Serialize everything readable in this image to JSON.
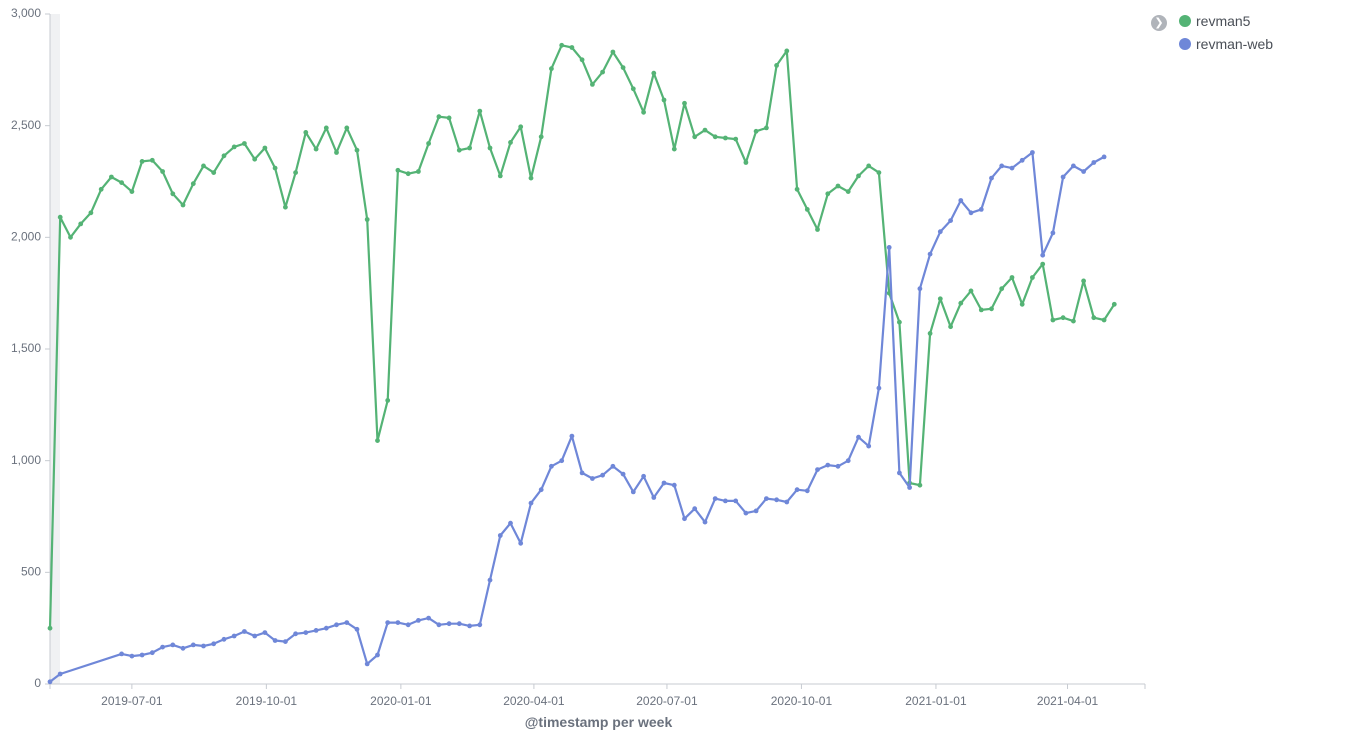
{
  "chart_data": {
    "type": "line",
    "xlabel": "@timestamp per week",
    "ylabel": "",
    "ylim": [
      0,
      3000
    ],
    "y_ticks": [
      0,
      500,
      1000,
      1500,
      2000,
      2500,
      3000
    ],
    "y_tick_labels": [
      "0",
      "500",
      "1,000",
      "1,500",
      "2,000",
      "2,500",
      "3,000"
    ],
    "x_range": [
      "2019-05-06",
      "2021-05-24"
    ],
    "x_ticks": [
      "2019-07-01",
      "2019-10-01",
      "2020-01-01",
      "2020-04-01",
      "2020-07-01",
      "2020-10-01",
      "2021-01-01",
      "2021-04-01"
    ],
    "legend_position": "top-right",
    "series": [
      {
        "name": "revman5",
        "color": "#54b375",
        "points": [
          [
            "2019-05-06",
            250
          ],
          [
            "2019-05-13",
            2090
          ],
          [
            "2019-05-20",
            2000
          ],
          [
            "2019-05-27",
            2060
          ],
          [
            "2019-06-03",
            2110
          ],
          [
            "2019-06-10",
            2215
          ],
          [
            "2019-06-17",
            2270
          ],
          [
            "2019-06-24",
            2245
          ],
          [
            "2019-07-01",
            2205
          ],
          [
            "2019-07-08",
            2340
          ],
          [
            "2019-07-15",
            2345
          ],
          [
            "2019-07-22",
            2295
          ],
          [
            "2019-07-29",
            2195
          ],
          [
            "2019-08-05",
            2145
          ],
          [
            "2019-08-12",
            2240
          ],
          [
            "2019-08-19",
            2320
          ],
          [
            "2019-08-26",
            2290
          ],
          [
            "2019-09-02",
            2365
          ],
          [
            "2019-09-09",
            2405
          ],
          [
            "2019-09-16",
            2420
          ],
          [
            "2019-09-23",
            2350
          ],
          [
            "2019-09-30",
            2400
          ],
          [
            "2019-10-07",
            2310
          ],
          [
            "2019-10-14",
            2135
          ],
          [
            "2019-10-21",
            2290
          ],
          [
            "2019-10-28",
            2470
          ],
          [
            "2019-11-04",
            2395
          ],
          [
            "2019-11-11",
            2490
          ],
          [
            "2019-11-18",
            2380
          ],
          [
            "2019-11-25",
            2490
          ],
          [
            "2019-12-02",
            2390
          ],
          [
            "2019-12-09",
            2080
          ],
          [
            "2019-12-16",
            1090
          ],
          [
            "2019-12-23",
            1270
          ],
          [
            "2019-12-30",
            2300
          ],
          [
            "2020-01-06",
            2285
          ],
          [
            "2020-01-13",
            2295
          ],
          [
            "2020-01-20",
            2420
          ],
          [
            "2020-01-27",
            2540
          ],
          [
            "2020-02-03",
            2535
          ],
          [
            "2020-02-10",
            2390
          ],
          [
            "2020-02-17",
            2400
          ],
          [
            "2020-02-24",
            2565
          ],
          [
            "2020-03-02",
            2400
          ],
          [
            "2020-03-09",
            2275
          ],
          [
            "2020-03-16",
            2425
          ],
          [
            "2020-03-23",
            2495
          ],
          [
            "2020-03-30",
            2265
          ],
          [
            "2020-04-06",
            2450
          ],
          [
            "2020-04-13",
            2755
          ],
          [
            "2020-04-20",
            2860
          ],
          [
            "2020-04-27",
            2850
          ],
          [
            "2020-05-04",
            2795
          ],
          [
            "2020-05-11",
            2685
          ],
          [
            "2020-05-18",
            2740
          ],
          [
            "2020-05-25",
            2830
          ],
          [
            "2020-06-01",
            2760
          ],
          [
            "2020-06-08",
            2665
          ],
          [
            "2020-06-15",
            2560
          ],
          [
            "2020-06-22",
            2735
          ],
          [
            "2020-06-29",
            2615
          ],
          [
            "2020-07-06",
            2395
          ],
          [
            "2020-07-13",
            2600
          ],
          [
            "2020-07-20",
            2450
          ],
          [
            "2020-07-27",
            2480
          ],
          [
            "2020-08-03",
            2450
          ],
          [
            "2020-08-10",
            2445
          ],
          [
            "2020-08-17",
            2440
          ],
          [
            "2020-08-24",
            2335
          ],
          [
            "2020-08-31",
            2475
          ],
          [
            "2020-09-07",
            2490
          ],
          [
            "2020-09-14",
            2770
          ],
          [
            "2020-09-21",
            2835
          ],
          [
            "2020-09-28",
            2215
          ],
          [
            "2020-10-05",
            2125
          ],
          [
            "2020-10-12",
            2035
          ],
          [
            "2020-10-19",
            2195
          ],
          [
            "2020-10-26",
            2230
          ],
          [
            "2020-11-02",
            2205
          ],
          [
            "2020-11-09",
            2275
          ],
          [
            "2020-11-16",
            2320
          ],
          [
            "2020-11-23",
            2290
          ],
          [
            "2020-11-30",
            1750
          ],
          [
            "2020-12-07",
            1620
          ],
          [
            "2020-12-14",
            900
          ],
          [
            "2020-12-21",
            890
          ],
          [
            "2020-12-28",
            1570
          ],
          [
            "2021-01-04",
            1725
          ],
          [
            "2021-01-11",
            1600
          ],
          [
            "2021-01-18",
            1705
          ],
          [
            "2021-01-25",
            1760
          ],
          [
            "2021-02-01",
            1675
          ],
          [
            "2021-02-08",
            1680
          ],
          [
            "2021-02-15",
            1770
          ],
          [
            "2021-02-22",
            1820
          ],
          [
            "2021-03-01",
            1700
          ],
          [
            "2021-03-08",
            1820
          ],
          [
            "2021-03-15",
            1880
          ],
          [
            "2021-03-22",
            1630
          ],
          [
            "2021-03-29",
            1640
          ],
          [
            "2021-04-05",
            1625
          ],
          [
            "2021-04-12",
            1805
          ],
          [
            "2021-04-19",
            1640
          ],
          [
            "2021-04-26",
            1630
          ],
          [
            "2021-05-03",
            1700
          ]
        ]
      },
      {
        "name": "revman-web",
        "color": "#6f87d8",
        "points": [
          [
            "2019-05-06",
            10
          ],
          [
            "2019-05-13",
            45
          ],
          [
            "2019-06-24",
            135
          ],
          [
            "2019-07-01",
            125
          ],
          [
            "2019-07-08",
            130
          ],
          [
            "2019-07-15",
            140
          ],
          [
            "2019-07-22",
            165
          ],
          [
            "2019-07-29",
            175
          ],
          [
            "2019-08-05",
            160
          ],
          [
            "2019-08-12",
            175
          ],
          [
            "2019-08-19",
            170
          ],
          [
            "2019-08-26",
            180
          ],
          [
            "2019-09-02",
            200
          ],
          [
            "2019-09-09",
            215
          ],
          [
            "2019-09-16",
            235
          ],
          [
            "2019-09-23",
            215
          ],
          [
            "2019-09-30",
            230
          ],
          [
            "2019-10-07",
            195
          ],
          [
            "2019-10-14",
            190
          ],
          [
            "2019-10-21",
            225
          ],
          [
            "2019-10-28",
            230
          ],
          [
            "2019-11-04",
            240
          ],
          [
            "2019-11-11",
            250
          ],
          [
            "2019-11-18",
            265
          ],
          [
            "2019-11-25",
            275
          ],
          [
            "2019-12-02",
            245
          ],
          [
            "2019-12-09",
            90
          ],
          [
            "2019-12-16",
            130
          ],
          [
            "2019-12-23",
            275
          ],
          [
            "2019-12-30",
            275
          ],
          [
            "2020-01-06",
            265
          ],
          [
            "2020-01-13",
            285
          ],
          [
            "2020-01-20",
            295
          ],
          [
            "2020-01-27",
            265
          ],
          [
            "2020-02-03",
            270
          ],
          [
            "2020-02-10",
            270
          ],
          [
            "2020-02-17",
            260
          ],
          [
            "2020-02-24",
            265
          ],
          [
            "2020-03-02",
            465
          ],
          [
            "2020-03-09",
            665
          ],
          [
            "2020-03-16",
            720
          ],
          [
            "2020-03-23",
            630
          ],
          [
            "2020-03-30",
            810
          ],
          [
            "2020-04-06",
            870
          ],
          [
            "2020-04-13",
            975
          ],
          [
            "2020-04-20",
            1000
          ],
          [
            "2020-04-27",
            1110
          ],
          [
            "2020-05-04",
            945
          ],
          [
            "2020-05-11",
            920
          ],
          [
            "2020-05-18",
            935
          ],
          [
            "2020-05-25",
            975
          ],
          [
            "2020-06-01",
            940
          ],
          [
            "2020-06-08",
            860
          ],
          [
            "2020-06-15",
            930
          ],
          [
            "2020-06-22",
            835
          ],
          [
            "2020-06-29",
            900
          ],
          [
            "2020-07-06",
            890
          ],
          [
            "2020-07-13",
            740
          ],
          [
            "2020-07-20",
            785
          ],
          [
            "2020-07-27",
            725
          ],
          [
            "2020-08-03",
            830
          ],
          [
            "2020-08-10",
            820
          ],
          [
            "2020-08-17",
            820
          ],
          [
            "2020-08-24",
            765
          ],
          [
            "2020-08-31",
            775
          ],
          [
            "2020-09-07",
            830
          ],
          [
            "2020-09-14",
            825
          ],
          [
            "2020-09-21",
            815
          ],
          [
            "2020-09-28",
            870
          ],
          [
            "2020-10-05",
            865
          ],
          [
            "2020-10-12",
            960
          ],
          [
            "2020-10-19",
            980
          ],
          [
            "2020-10-26",
            975
          ],
          [
            "2020-11-02",
            1000
          ],
          [
            "2020-11-09",
            1105
          ],
          [
            "2020-11-16",
            1065
          ],
          [
            "2020-11-23",
            1325
          ],
          [
            "2020-11-30",
            1955
          ],
          [
            "2020-12-07",
            945
          ],
          [
            "2020-12-14",
            880
          ],
          [
            "2020-12-21",
            1770
          ],
          [
            "2020-12-28",
            1925
          ],
          [
            "2021-01-04",
            2025
          ],
          [
            "2021-01-11",
            2075
          ],
          [
            "2021-01-18",
            2165
          ],
          [
            "2021-01-25",
            2110
          ],
          [
            "2021-02-01",
            2125
          ],
          [
            "2021-02-08",
            2265
          ],
          [
            "2021-02-15",
            2320
          ],
          [
            "2021-02-22",
            2310
          ],
          [
            "2021-03-01",
            2345
          ],
          [
            "2021-03-08",
            2380
          ],
          [
            "2021-03-15",
            1920
          ],
          [
            "2021-03-22",
            2020
          ],
          [
            "2021-03-29",
            2270
          ],
          [
            "2021-04-05",
            2320
          ],
          [
            "2021-04-12",
            2295
          ],
          [
            "2021-04-19",
            2335
          ],
          [
            "2021-04-26",
            2360
          ]
        ]
      }
    ]
  },
  "legend": {
    "toggle_glyph": "❯",
    "items": [
      {
        "label": "revman5",
        "color": "#54b375"
      },
      {
        "label": "revman-web",
        "color": "#6f87d8"
      }
    ]
  }
}
